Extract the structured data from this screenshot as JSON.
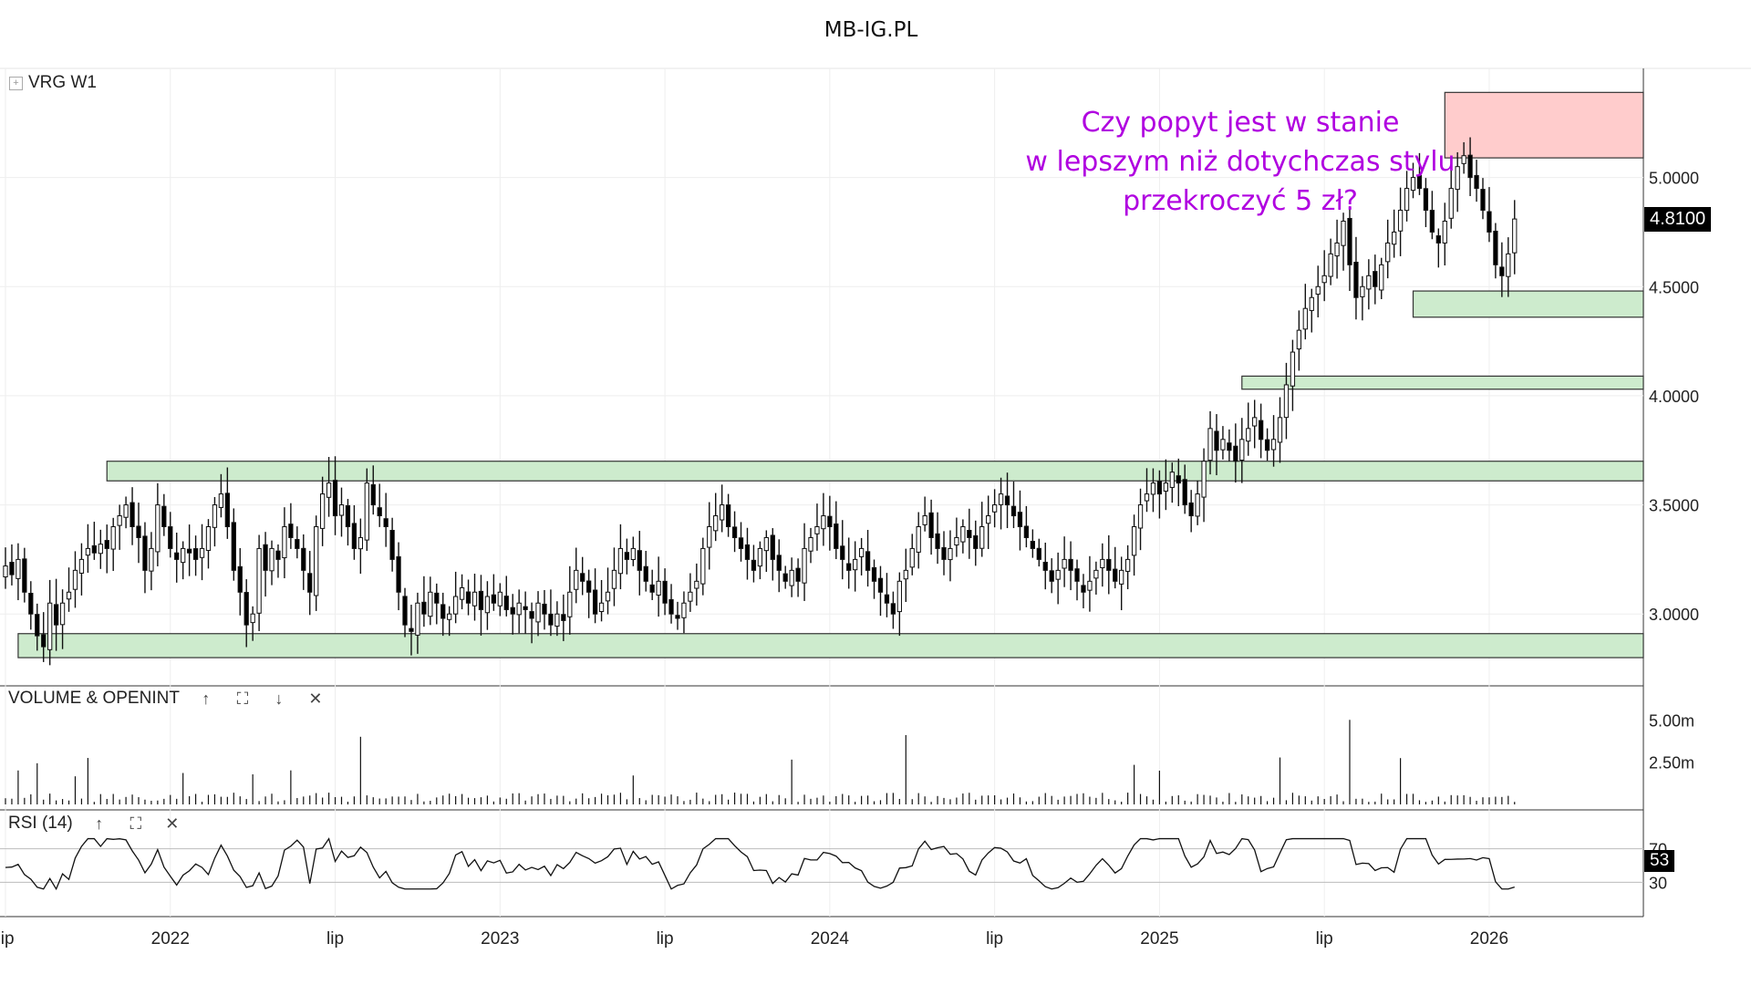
{
  "site_title": "MB-IG.PL",
  "price_pane": {
    "label": "VRG  W1",
    "expand_icon": "[+]",
    "last_price": "4.8100",
    "y_ticks": [
      "3.0000",
      "3.5000",
      "4.0000",
      "4.5000",
      "5.0000"
    ]
  },
  "annotation": {
    "lines": [
      "Czy popyt jest w stanie",
      "w lepszym niż dotychczas stylu",
      "przekroczyć 5 zł?"
    ],
    "color": "#b000e0"
  },
  "volume_pane": {
    "label": "VOLUME & OPENINT",
    "y_ticks": [
      "2.50m",
      "5.00m"
    ]
  },
  "rsi_pane": {
    "label": "RSI (14)",
    "value_badge": "53",
    "y_ticks": [
      "30",
      "70"
    ]
  },
  "x_axis_labels": [
    "lip",
    "2022",
    "lip",
    "2023",
    "lip",
    "2024",
    "lip",
    "2025",
    "lip",
    "2026"
  ],
  "colors": {
    "support_zone": "#cdebcd",
    "resistance_zone": "#ffcccc",
    "candle_up": "#ffffff",
    "candle_down": "#000000"
  },
  "chart_data": {
    "type": "candlestick",
    "symbol": "VRG",
    "timeframe": "W1",
    "price_range": [
      2.7,
      5.5
    ],
    "x_axis": {
      "start_week_index": 0,
      "ticks": [
        {
          "label": "lip",
          "week": 0
        },
        {
          "label": "2022",
          "week": 26
        },
        {
          "label": "lip",
          "week": 52
        },
        {
          "label": "2023",
          "week": 78
        },
        {
          "label": "lip",
          "week": 104
        },
        {
          "label": "2024",
          "week": 130
        },
        {
          "label": "lip",
          "week": 156
        },
        {
          "label": "2025",
          "week": 182
        },
        {
          "label": "lip",
          "week": 208
        },
        {
          "label": "2026",
          "week": 234
        }
      ],
      "total_weeks": 255
    },
    "zones": [
      {
        "kind": "support",
        "from": 2.8,
        "to": 2.91,
        "start_week": 2
      },
      {
        "kind": "support",
        "from": 3.61,
        "to": 3.7,
        "start_week": 16
      },
      {
        "kind": "support",
        "from": 4.03,
        "to": 4.09,
        "start_week": 195
      },
      {
        "kind": "support",
        "from": 4.36,
        "to": 4.48,
        "start_week": 222
      },
      {
        "kind": "resistance",
        "from": 5.09,
        "to": 5.39,
        "start_week": 227
      }
    ],
    "close_series": [
      3.22,
      3.18,
      3.25,
      3.1,
      3.0,
      2.9,
      2.85,
      3.05,
      2.95,
      3.05,
      3.1,
      3.2,
      3.25,
      3.3,
      3.28,
      3.32,
      3.3,
      3.4,
      3.45,
      3.5,
      3.4,
      3.35,
      3.2,
      3.3,
      3.5,
      3.4,
      3.3,
      3.25,
      3.3,
      3.28,
      3.25,
      3.3,
      3.4,
      3.5,
      3.55,
      3.4,
      3.2,
      3.1,
      2.95,
      3.0,
      3.3,
      3.2,
      3.3,
      3.25,
      3.4,
      3.35,
      3.3,
      3.2,
      3.1,
      3.4,
      3.55,
      3.6,
      3.45,
      3.5,
      3.4,
      3.3,
      3.35,
      3.6,
      3.5,
      3.45,
      3.4,
      3.25,
      3.1,
      2.95,
      2.92,
      3.05,
      3.0,
      3.1,
      3.05,
      2.98,
      3.0,
      3.08,
      3.12,
      3.05,
      3.1,
      3.02,
      3.08,
      3.05,
      3.1,
      3.02,
      3.0,
      3.05,
      3.02,
      2.98,
      3.05,
      3.0,
      2.95,
      3.0,
      2.97,
      3.1,
      3.2,
      3.15,
      3.1,
      3.0,
      3.05,
      3.1,
      3.2,
      3.3,
      3.25,
      3.3,
      3.2,
      3.15,
      3.1,
      3.15,
      3.05,
      3.0,
      2.98,
      3.05,
      3.1,
      3.15,
      3.3,
      3.4,
      3.45,
      3.5,
      3.4,
      3.35,
      3.3,
      3.25,
      3.2,
      3.3,
      3.35,
      3.25,
      3.2,
      3.15,
      3.2,
      3.15,
      3.3,
      3.35,
      3.4,
      3.45,
      3.4,
      3.3,
      3.25,
      3.2,
      3.25,
      3.3,
      3.2,
      3.15,
      3.1,
      3.05,
      3.0,
      3.15,
      3.2,
      3.3,
      3.4,
      3.45,
      3.35,
      3.3,
      3.25,
      3.3,
      3.35,
      3.4,
      3.35,
      3.3,
      3.4,
      3.45,
      3.5,
      3.55,
      3.5,
      3.45,
      3.4,
      3.35,
      3.3,
      3.25,
      3.2,
      3.15,
      3.2,
      3.25,
      3.2,
      3.15,
      3.1,
      3.15,
      3.2,
      3.25,
      3.2,
      3.15,
      3.2,
      3.25,
      3.4,
      3.5,
      3.55,
      3.6,
      3.55,
      3.6,
      3.65,
      3.6,
      3.5,
      3.45,
      3.55,
      3.7,
      3.85,
      3.75,
      3.8,
      3.75,
      3.7,
      3.8,
      3.85,
      3.9,
      3.8,
      3.75,
      3.8,
      3.9,
      4.05,
      4.2,
      4.3,
      4.4,
      4.45,
      4.5,
      4.55,
      4.65,
      4.7,
      4.8,
      4.6,
      4.45,
      4.5,
      4.55,
      4.5,
      4.6,
      4.7,
      4.75,
      4.85,
      4.95,
      5.0,
      4.95,
      4.85,
      4.75,
      4.7,
      4.8,
      4.95,
      5.05,
      5.1,
      5.0,
      4.95,
      4.85,
      4.75,
      4.6,
      4.55,
      4.65,
      4.81
    ],
    "rsi_range": [
      0,
      100
    ],
    "rsi_levels": [
      30,
      70
    ],
    "volume_range_millions": [
      0,
      5.5
    ]
  }
}
